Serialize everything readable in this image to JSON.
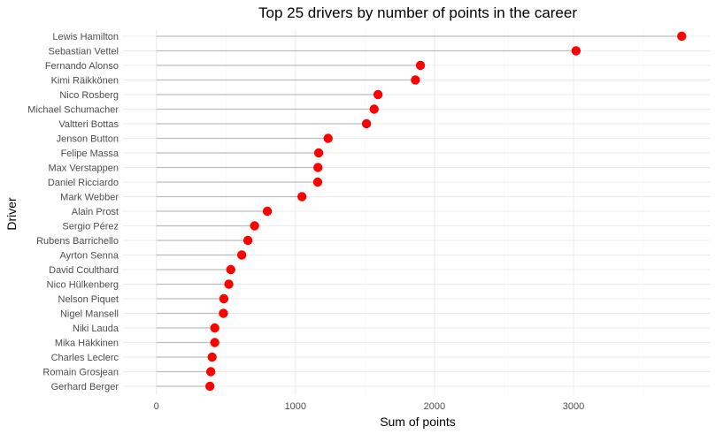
{
  "chart_data": {
    "type": "lollipop",
    "title": "Top 25 drivers by number of points in the career",
    "xlabel": "Sum of points",
    "ylabel": "Driver",
    "xlim": [
      -240,
      3980
    ],
    "xticks": [
      0,
      1000,
      2000,
      3000
    ],
    "grid": true,
    "colors": {
      "point": "#ff0000",
      "stem": "#bdbdbd",
      "grid_major": "#ebebeb",
      "grid_minor": "#f5f5f5"
    },
    "drivers": [
      "Lewis Hamilton",
      "Sebastian Vettel",
      "Fernando Alonso",
      "Kimi Räikkönen",
      "Nico Rosberg",
      "Michael Schumacher",
      "Valtteri Bottas",
      "Jenson Button",
      "Felipe Massa",
      "Max Verstappen",
      "Daniel Ricciardo",
      "Mark Webber",
      "Alain Prost",
      "Sergio Pérez",
      "Rubens Barrichello",
      "Ayrton Senna",
      "David Coulthard",
      "Nico Hülkenberg",
      "Nelson Piquet",
      "Nigel Mansell",
      "Niki Lauda",
      "Mika Häkkinen",
      "Charles Leclerc",
      "Romain Grosjean",
      "Gerhard Berger"
    ],
    "values": [
      3778,
      3018,
      1899,
      1863,
      1594,
      1566,
      1511,
      1235,
      1167,
      1162,
      1160,
      1047,
      798,
      706,
      658,
      614,
      535,
      521,
      485,
      482,
      420,
      420,
      401,
      391,
      385
    ]
  }
}
